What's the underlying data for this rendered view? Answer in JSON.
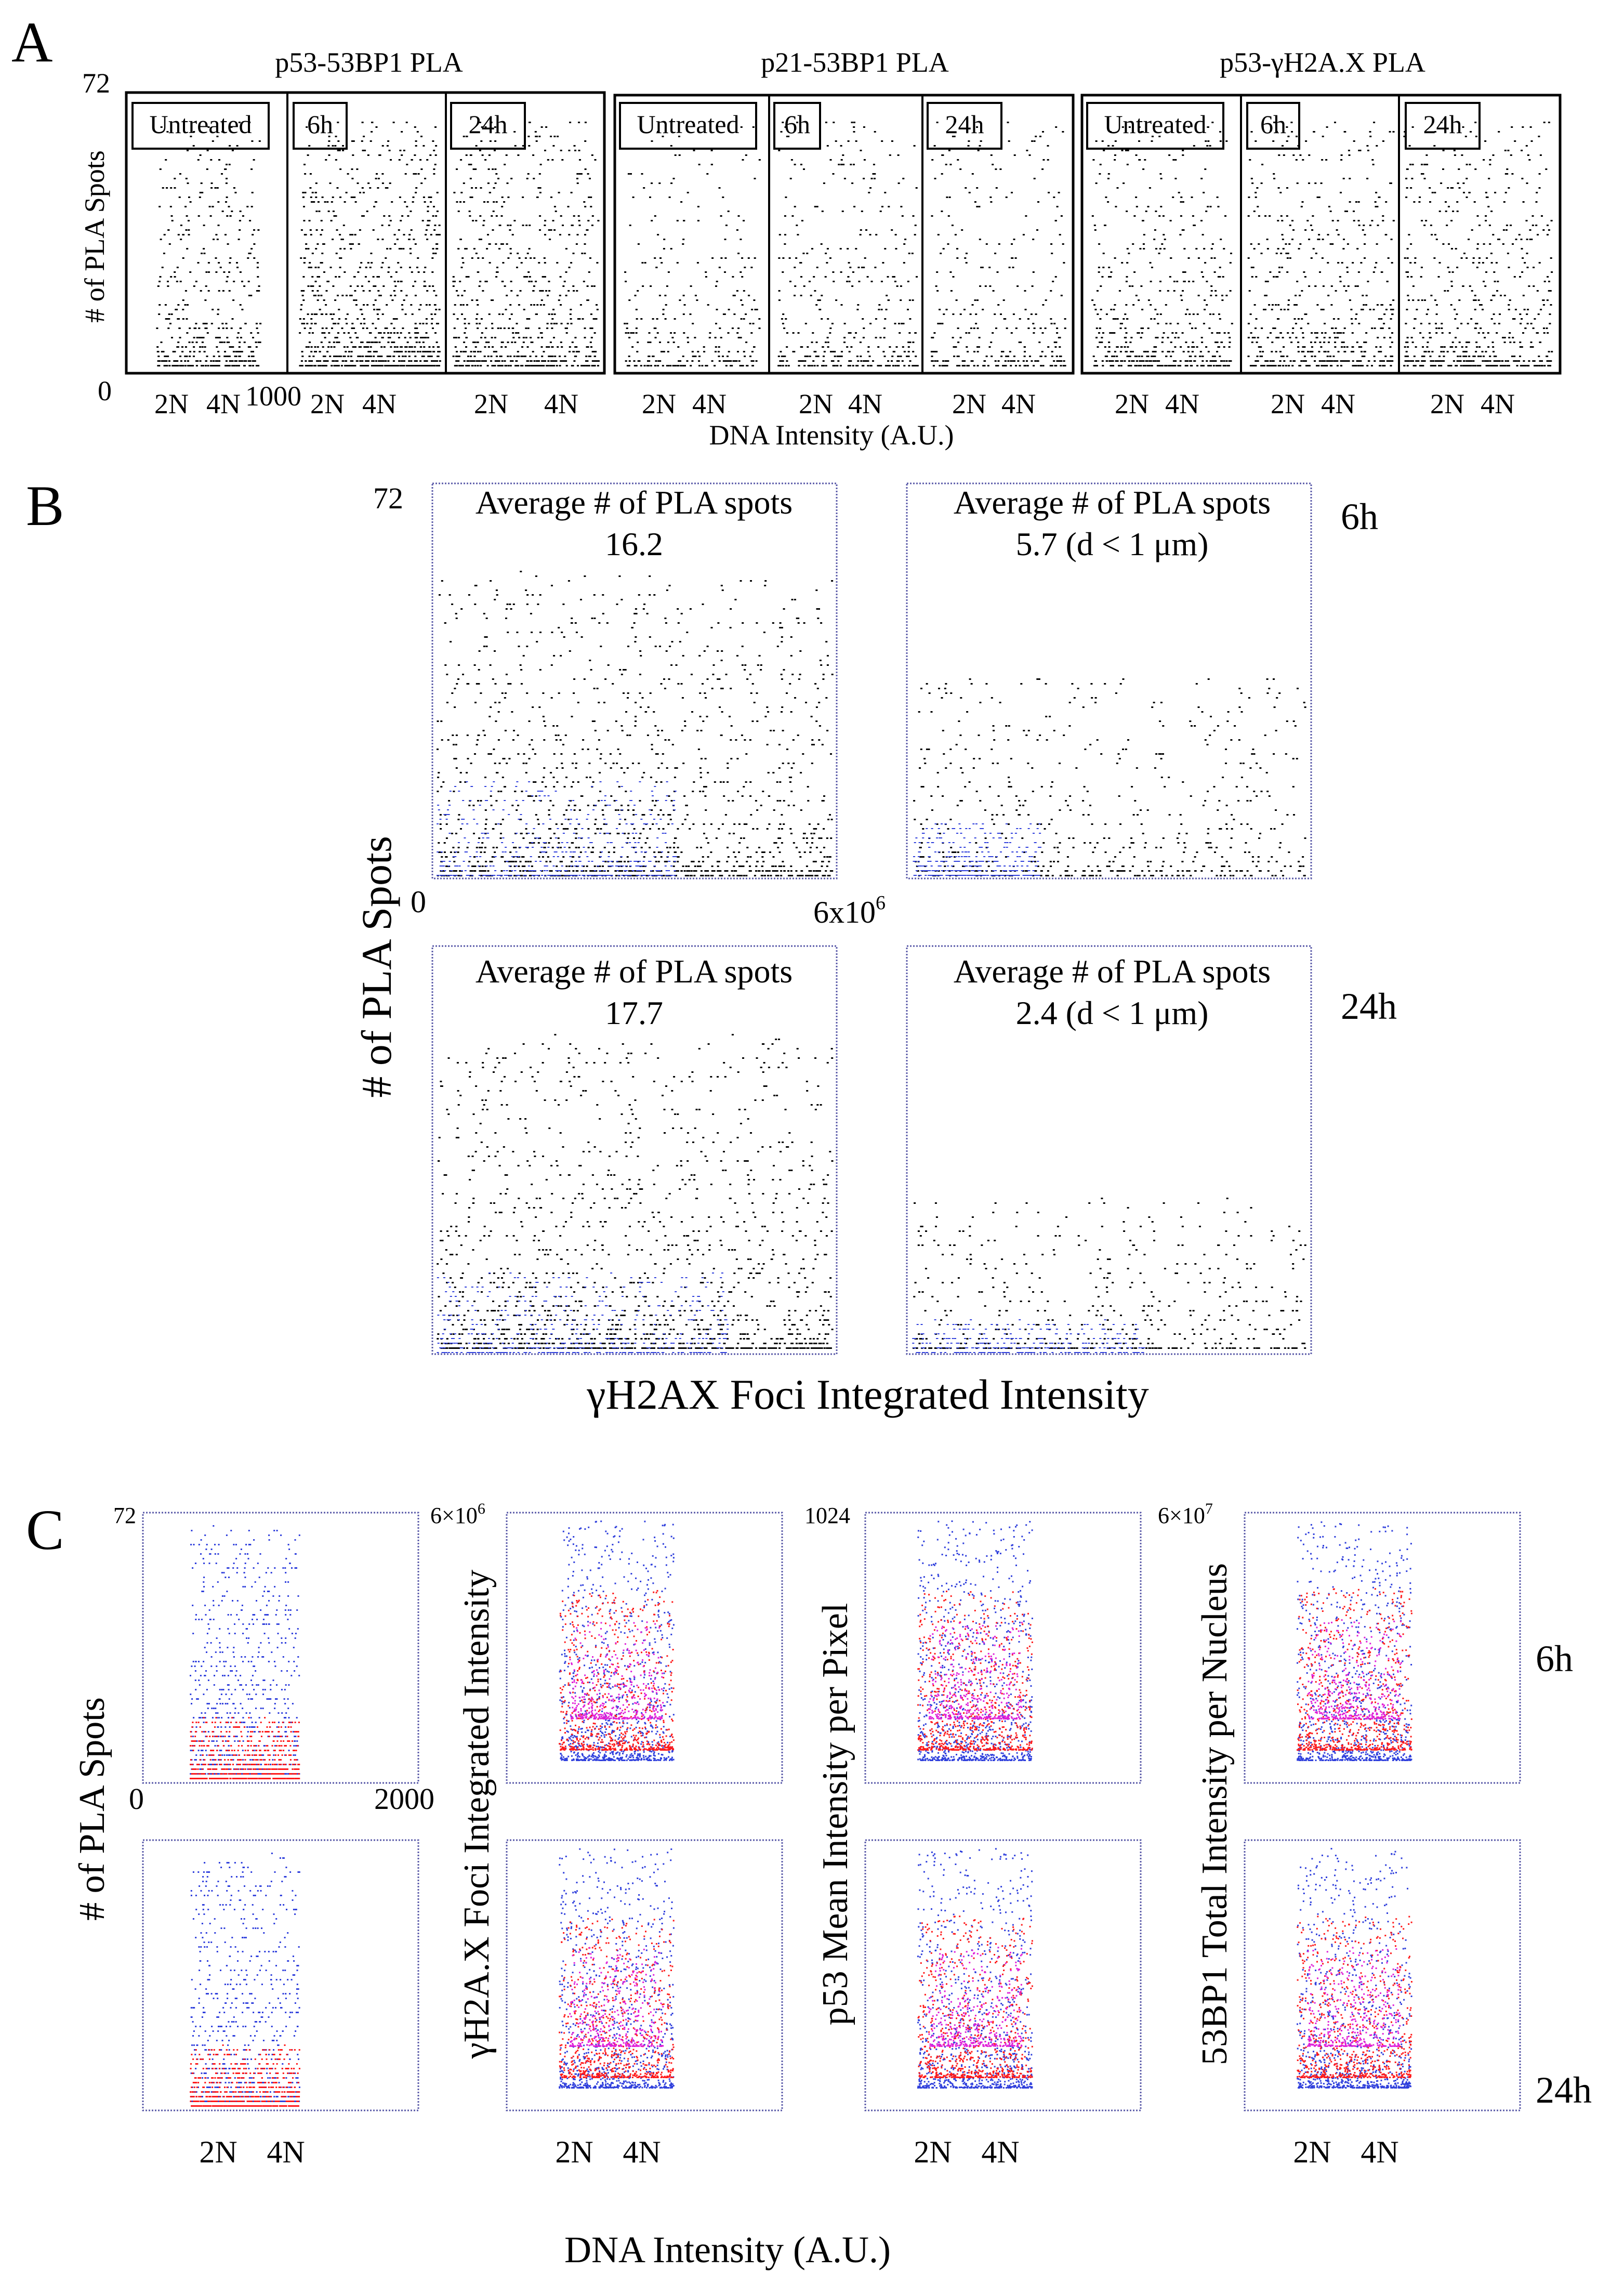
{
  "panel_letters": [
    "A",
    "B",
    "C"
  ],
  "colors": {
    "points_primary": "#000000",
    "points_blue": "#2f3fdc",
    "points_red": "#ff1a1a",
    "points_magenta": "#e020d8",
    "frame_dotted": "#5a5aa8"
  },
  "panelA": {
    "ylabel": "# of PLA Spots",
    "y_top_tick": "72",
    "y_bottom_tick": "0",
    "x_right_tick": "1000",
    "xlabel": "DNA Intensity (A.U.)",
    "groups": [
      {
        "title": "p53-53BP1 PLA",
        "subplots": [
          {
            "label": "Untreated"
          },
          {
            "label": "6h"
          },
          {
            "label": "24h"
          }
        ]
      },
      {
        "title": "p21-53BP1 PLA",
        "subplots": [
          {
            "label": "Untreated"
          },
          {
            "label": "6h"
          },
          {
            "label": "24h"
          }
        ]
      },
      {
        "title": "p53-γH2A.X PLA",
        "subplots": [
          {
            "label": "Untreated"
          },
          {
            "label": "6h"
          },
          {
            "label": "24h"
          }
        ]
      }
    ],
    "x_ticks": [
      "2N",
      "4N"
    ]
  },
  "panelB": {
    "ylabel": "# of PLA Spots",
    "xlabel": "γH2AX Foci Integrated Intensity",
    "y_top_tick": "72",
    "x_left_tick": "0",
    "x_right_tick_base": "6x10",
    "x_right_tick_exp": "6",
    "rows": [
      {
        "time": "6h",
        "left": {
          "line1": "Average # of PLA spots",
          "line2": "16.2"
        },
        "right": {
          "line1": "Average # of PLA spots",
          "line2": "5.7 (d < 1 μm)"
        }
      },
      {
        "time": "24h",
        "left": {
          "line1": "Average # of PLA spots",
          "line2": "17.7"
        },
        "right": {
          "line1": "Average # of PLA spots",
          "line2": "2.4 (d < 1 μm)"
        }
      }
    ]
  },
  "panelC": {
    "xlabel": "DNA Intensity (A.U.)",
    "x_left_tick": "0",
    "x_right_tick": "2000",
    "x_ticks": [
      "2N",
      "4N"
    ],
    "rows": [
      "6h",
      "24h"
    ],
    "columns": [
      {
        "ylabel": "# of PLA Spots",
        "y_top_base": "72",
        "y_top_exp": ""
      },
      {
        "ylabel": "γH2A.X Foci Integrated Intensity",
        "y_top_base": "6×10",
        "y_top_exp": "6"
      },
      {
        "ylabel": "p53 Mean Intensity per Pixel",
        "y_top_base": "1024",
        "y_top_exp": ""
      },
      {
        "ylabel": "53BP1 Total Intensity per Nucleus",
        "y_top_base": "6×10",
        "y_top_exp": "7"
      }
    ]
  }
}
